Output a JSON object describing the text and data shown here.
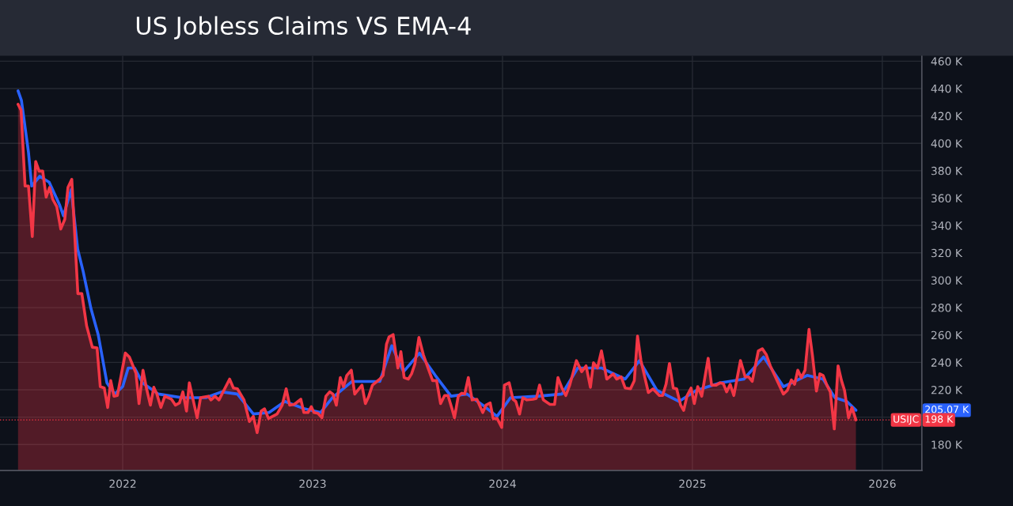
{
  "chart_data": {
    "type": "line",
    "title": "US Jobless Claims VS EMA-4",
    "xlim": [
      2021.354,
      2026.208
    ],
    "ylim": [
      161,
      464
    ],
    "xticks": [
      {
        "value": 2022,
        "label": "2022"
      },
      {
        "value": 2023,
        "label": "2023"
      },
      {
        "value": 2024,
        "label": "2024"
      },
      {
        "value": 2025,
        "label": "2025"
      },
      {
        "value": 2026,
        "label": "2026"
      }
    ],
    "yticks": [
      {
        "value": 180,
        "label": "180 K"
      },
      {
        "value": 200,
        "label": null
      },
      {
        "value": 220,
        "label": "220 K"
      },
      {
        "value": 240,
        "label": "240 K"
      },
      {
        "value": 260,
        "label": "260 K"
      },
      {
        "value": 280,
        "label": "280 K"
      },
      {
        "value": 300,
        "label": "300 K"
      },
      {
        "value": 320,
        "label": "320 K"
      },
      {
        "value": 340,
        "label": "340 K"
      },
      {
        "value": 360,
        "label": "360 K"
      },
      {
        "value": 380,
        "label": "380 K"
      },
      {
        "value": 400,
        "label": "400 K"
      },
      {
        "value": 420,
        "label": "420 K"
      },
      {
        "value": 440,
        "label": "440 K"
      },
      {
        "value": 460,
        "label": "460 K"
      }
    ],
    "grid": true,
    "series": [
      {
        "color": "#2962ff",
        "x": [
          2021.449,
          2021.467,
          2021.504,
          2021.521,
          2021.563,
          2021.613,
          2021.667,
          2021.688,
          2021.729,
          2021.763,
          2021.792,
          2021.833,
          2021.871,
          2021.917,
          2021.958,
          2022.0,
          2022.029,
          2022.063,
          2022.104,
          2022.188,
          2022.313,
          2022.438,
          2022.521,
          2022.604,
          2022.688,
          2022.771,
          2022.854,
          2022.958,
          2023.042,
          2023.104,
          2023.208,
          2023.354,
          2023.417,
          2023.479,
          2023.563,
          2023.646,
          2023.729,
          2023.813,
          2023.896,
          2023.971,
          2024.042,
          2024.188,
          2024.313,
          2024.396,
          2024.521,
          2024.646,
          2024.721,
          2024.813,
          2024.929,
          2025.021,
          2025.146,
          2025.271,
          2025.375,
          2025.479,
          2025.604,
          2025.688,
          2025.75,
          2025.813,
          2025.861
        ],
        "values": [
          438.3,
          431.2,
          393.3,
          368.8,
          375.9,
          371.6,
          355.3,
          347.1,
          366.1,
          322.7,
          306.4,
          279.3,
          260.3,
          225.1,
          216.9,
          222.3,
          235.9,
          235.9,
          225.1,
          216.9,
          214.2,
          214.2,
          218.5,
          216.9,
          202.3,
          203.4,
          211.5,
          206.1,
          203.4,
          214.2,
          226.1,
          226.1,
          252.2,
          233.2,
          246.8,
          230.5,
          215.3,
          216.9,
          208.8,
          200.6,
          214.2,
          215.3,
          216.9,
          235.9,
          235.9,
          227.8,
          241.3,
          219.6,
          211.5,
          219.6,
          225.1,
          227.8,
          244,
          222.3,
          230.5,
          227.8,
          214.2,
          211.5,
          205.07
        ]
      },
      {
        "type": "area",
        "name": "USIJC",
        "color": "#f23645",
        "x": [
          2021.449,
          2021.465,
          2021.486,
          2021.504,
          2021.524,
          2021.542,
          2021.56,
          2021.579,
          2021.597,
          2021.615,
          2021.632,
          2021.653,
          2021.674,
          2021.695,
          2021.712,
          2021.732,
          2021.764,
          2021.785,
          2021.81,
          2021.84,
          2021.865,
          2021.882,
          2021.903,
          2021.921,
          2021.937,
          2021.954,
          2021.972,
          2022.014,
          2022.035,
          2022.07,
          2022.086,
          2022.107,
          2022.125,
          2022.146,
          2022.164,
          2022.18,
          2022.201,
          2022.222,
          2022.257,
          2022.278,
          2022.299,
          2022.317,
          2022.336,
          2022.351,
          2022.371,
          2022.392,
          2022.41,
          2022.451,
          2022.465,
          2022.486,
          2022.507,
          2022.563,
          2022.583,
          2022.604,
          2022.639,
          2022.667,
          2022.688,
          2022.708,
          2022.729,
          2022.747,
          2022.768,
          2022.813,
          2022.84,
          2022.861,
          2022.879,
          2022.903,
          2022.938,
          2022.954,
          2022.976,
          2022.993,
          2023.007,
          2023.028,
          2023.049,
          2023.07,
          2023.09,
          2023.107,
          2023.125,
          2023.146,
          2023.163,
          2023.18,
          2023.204,
          2023.222,
          2023.26,
          2023.278,
          2023.296,
          2023.315,
          2023.354,
          2023.371,
          2023.389,
          2023.403,
          2023.424,
          2023.449,
          2023.465,
          2023.482,
          2023.504,
          2023.521,
          2023.538,
          2023.56,
          2023.583,
          2023.601,
          2023.632,
          2023.653,
          2023.674,
          2023.695,
          2023.713,
          2023.732,
          2023.747,
          2023.767,
          2023.785,
          2023.801,
          2023.82,
          2023.84,
          2023.865,
          2023.896,
          2023.913,
          2023.935,
          2023.951,
          2023.972,
          2023.996,
          2024.01,
          2024.035,
          2024.055,
          2024.07,
          2024.09,
          2024.107,
          2024.129,
          2024.16,
          2024.178,
          2024.195,
          2024.215,
          2024.25,
          2024.274,
          2024.292,
          2024.313,
          2024.333,
          2024.354,
          2024.389,
          2024.417,
          2024.44,
          2024.463,
          2024.479,
          2024.5,
          2024.521,
          2024.549,
          2024.583,
          2024.601,
          2024.625,
          2024.646,
          2024.674,
          2024.694,
          2024.711,
          2024.729,
          2024.768,
          2024.792,
          2024.826,
          2024.843,
          2024.861,
          2024.879,
          2024.899,
          2024.917,
          2024.938,
          2024.954,
          2024.972,
          2024.993,
          2025.01,
          2025.028,
          2025.049,
          2025.083,
          2025.101,
          2025.125,
          2025.146,
          2025.163,
          2025.18,
          2025.199,
          2025.218,
          2025.253,
          2025.278,
          2025.296,
          2025.315,
          2025.347,
          2025.368,
          2025.389,
          2025.41,
          2025.479,
          2025.5,
          2025.521,
          2025.538,
          2025.555,
          2025.574,
          2025.593,
          2025.614,
          2025.632,
          2025.653,
          2025.671,
          2025.688,
          2025.708,
          2025.726,
          2025.747,
          2025.767,
          2025.785,
          2025.801,
          2025.822,
          2025.84,
          2025.861
        ],
        "values": [
          428.5,
          424.2,
          368.8,
          368.8,
          331.9,
          386.7,
          379.7,
          379.7,
          360.7,
          367.8,
          359.1,
          353.7,
          337.4,
          344.4,
          367.8,
          373.7,
          290.2,
          290.2,
          266.8,
          251.1,
          250.6,
          222.3,
          221.3,
          207.1,
          226.7,
          215.3,
          215.8,
          246.8,
          244,
          232.1,
          209.9,
          234.3,
          221.3,
          208.8,
          221.8,
          216.9,
          207.1,
          215.3,
          213.1,
          208.8,
          210.4,
          218.5,
          204.4,
          225.1,
          212.6,
          199.6,
          214.2,
          215.3,
          212.6,
          215.3,
          212.6,
          227.8,
          221.3,
          220.7,
          212.6,
          196.8,
          200.6,
          188.7,
          204.4,
          206.1,
          199,
          202.3,
          208.8,
          220.7,
          208.8,
          209.3,
          213.1,
          203.4,
          203.4,
          207.7,
          203.4,
          202.8,
          199.6,
          215.3,
          218.5,
          216.9,
          208.8,
          228.9,
          222.3,
          230.5,
          234.3,
          216.9,
          223.4,
          209.9,
          215.3,
          223.4,
          227.8,
          230.5,
          253.3,
          258.7,
          260.3,
          235.9,
          247.8,
          228.9,
          227.8,
          231.6,
          238.6,
          258.2,
          245.7,
          238.6,
          226.7,
          226.7,
          209.9,
          215.8,
          215.8,
          207.1,
          199.6,
          215.3,
          217.5,
          216.9,
          228.9,
          212.6,
          213.1,
          203.4,
          208.8,
          210.4,
          199,
          199,
          192.5,
          223.4,
          225.1,
          213.1,
          211.5,
          202.3,
          214.2,
          212.6,
          213.1,
          213.7,
          223.4,
          212.6,
          209.3,
          209.3,
          228.9,
          221.3,
          215.8,
          223.4,
          241.3,
          233.2,
          237.5,
          221.8,
          239.7,
          235.9,
          248.4,
          227.8,
          231.6,
          227.8,
          229.4,
          221.3,
          220.7,
          226.7,
          259.2,
          241.3,
          218,
          220.7,
          215.8,
          215.8,
          224,
          239.2,
          221.3,
          220.7,
          208.8,
          205,
          215.8,
          221.3,
          209.9,
          222.3,
          215.3,
          243,
          223.4,
          223.4,
          225.1,
          224.5,
          218.5,
          224,
          215.8,
          241.3,
          229.4,
          229.4,
          226.1,
          248.4,
          250,
          245.7,
          237.5,
          216.9,
          219.6,
          227.2,
          224,
          234.3,
          228.9,
          234.3,
          264.1,
          245.1,
          219.1,
          231.6,
          230.5,
          223.4,
          218.5,
          191.4,
          237.5,
          226.7,
          219.6,
          199.6,
          207.1,
          198
        ]
      }
    ],
    "ref_lines": [
      {
        "axis": "y",
        "value": 198,
        "color": "#f23645",
        "line_style": "dotted"
      }
    ],
    "annotations": [
      "205.07 K",
      "198 K"
    ]
  }
}
